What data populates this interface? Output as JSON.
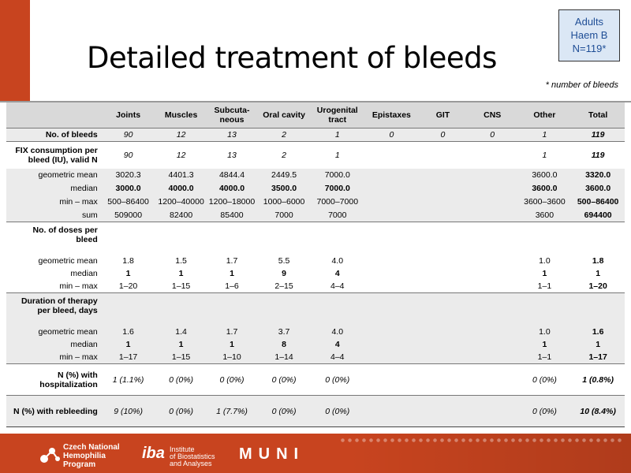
{
  "title": "Detailed treatment of bleeds",
  "badge": [
    "Adults",
    "Haem B",
    "N=119*"
  ],
  "note": "* number of bleeds",
  "columns": [
    "Joints",
    "Muscles",
    "Subcuta-neous",
    "Oral cavity",
    "Urogenital tract",
    "Epistaxes",
    "GIT",
    "CNS",
    "Other",
    "Total"
  ],
  "columns_display": [
    [
      "Joints"
    ],
    [
      "Muscles"
    ],
    [
      "Subcuta-",
      "neous"
    ],
    [
      "Oral cavity"
    ],
    [
      "Urogenital",
      "tract"
    ],
    [
      "Epistaxes"
    ],
    [
      "GIT"
    ],
    [
      "CNS"
    ],
    [
      "Other"
    ],
    [
      "Total"
    ]
  ],
  "rows": {
    "no_bleeds": {
      "label": "No. of bleeds",
      "values": [
        "90",
        "12",
        "13",
        "2",
        "1",
        "0",
        "0",
        "0",
        "1",
        "119"
      ]
    },
    "fix_valid": {
      "label": [
        "FIX consumption per",
        "bleed (IU), valid N"
      ],
      "values": [
        "90",
        "12",
        "13",
        "2",
        "1",
        "",
        "",
        "",
        "1",
        "119"
      ]
    },
    "fix_geo": {
      "label": "geometric mean",
      "values": [
        "3020.3",
        "4401.3",
        "4844.4",
        "2449.5",
        "7000.0",
        "",
        "",
        "",
        "3600.0",
        "3320.0"
      ]
    },
    "fix_median": {
      "label": "median",
      "values": [
        "3000.0",
        "4000.0",
        "4000.0",
        "3500.0",
        "7000.0",
        "",
        "",
        "",
        "3600.0",
        "3600.0"
      ]
    },
    "fix_minmax": {
      "label": "min – max",
      "values": [
        "500–86400",
        "1200–40000",
        "1200–18000",
        "1000–6000",
        "7000–7000",
        "",
        "",
        "",
        "3600–3600",
        "500–86400"
      ]
    },
    "fix_sum": {
      "label": "sum",
      "values": [
        "509000",
        "82400",
        "85400",
        "7000",
        "7000",
        "",
        "",
        "",
        "3600",
        "694400"
      ]
    },
    "doses_head": {
      "label": [
        "No. of doses per",
        "bleed"
      ]
    },
    "doses_geo": {
      "label": "geometric mean",
      "values": [
        "1.8",
        "1.5",
        "1.7",
        "5.5",
        "4.0",
        "",
        "",
        "",
        "1.0",
        "1.8"
      ]
    },
    "doses_median": {
      "label": "median",
      "values": [
        "1",
        "1",
        "1",
        "9",
        "4",
        "",
        "",
        "",
        "1",
        "1"
      ]
    },
    "doses_minmax": {
      "label": "min – max",
      "values": [
        "1–20",
        "1–15",
        "1–6",
        "2–15",
        "4–4",
        "",
        "",
        "",
        "1–1",
        "1–20"
      ]
    },
    "dur_head": {
      "label": [
        "Duration of therapy",
        "per bleed, days"
      ]
    },
    "dur_geo": {
      "label": "geometric mean",
      "values": [
        "1.6",
        "1.4",
        "1.7",
        "3.7",
        "4.0",
        "",
        "",
        "",
        "1.0",
        "1.6"
      ]
    },
    "dur_median": {
      "label": "median",
      "values": [
        "1",
        "1",
        "1",
        "8",
        "4",
        "",
        "",
        "",
        "1",
        "1"
      ]
    },
    "dur_minmax": {
      "label": "min – max",
      "values": [
        "1–17",
        "1–15",
        "1–10",
        "1–14",
        "4–4",
        "",
        "",
        "",
        "1–1",
        "1–17"
      ]
    },
    "hosp": {
      "label": [
        "N (%) with",
        "hospitalization"
      ],
      "values": [
        "1 (1.1%)",
        "0 (0%)",
        "0 (0%)",
        "0 (0%)",
        "0 (0%)",
        "",
        "",
        "",
        "0 (0%)",
        "1 (0.8%)"
      ]
    },
    "rebleed": {
      "label": "N (%) with rebleeding",
      "values": [
        "9 (10%)",
        "0 (0%)",
        "1 (7.7%)",
        "0 (0%)",
        "0 (0%)",
        "",
        "",
        "",
        "0 (0%)",
        "10 (8.4%)"
      ]
    }
  },
  "footer": {
    "cnhp": [
      "Czech National",
      "Hemophilia",
      "Program"
    ],
    "iba_mark": "iba",
    "iba": [
      "Institute",
      "of Biostatistics",
      "and Analyses"
    ],
    "muni": "MUNI"
  },
  "colors": {
    "accent": "#c8441f",
    "badge_bg": "#dbe7f5",
    "badge_text": "#1f4e96",
    "header_bg": "#d9d9d9"
  }
}
